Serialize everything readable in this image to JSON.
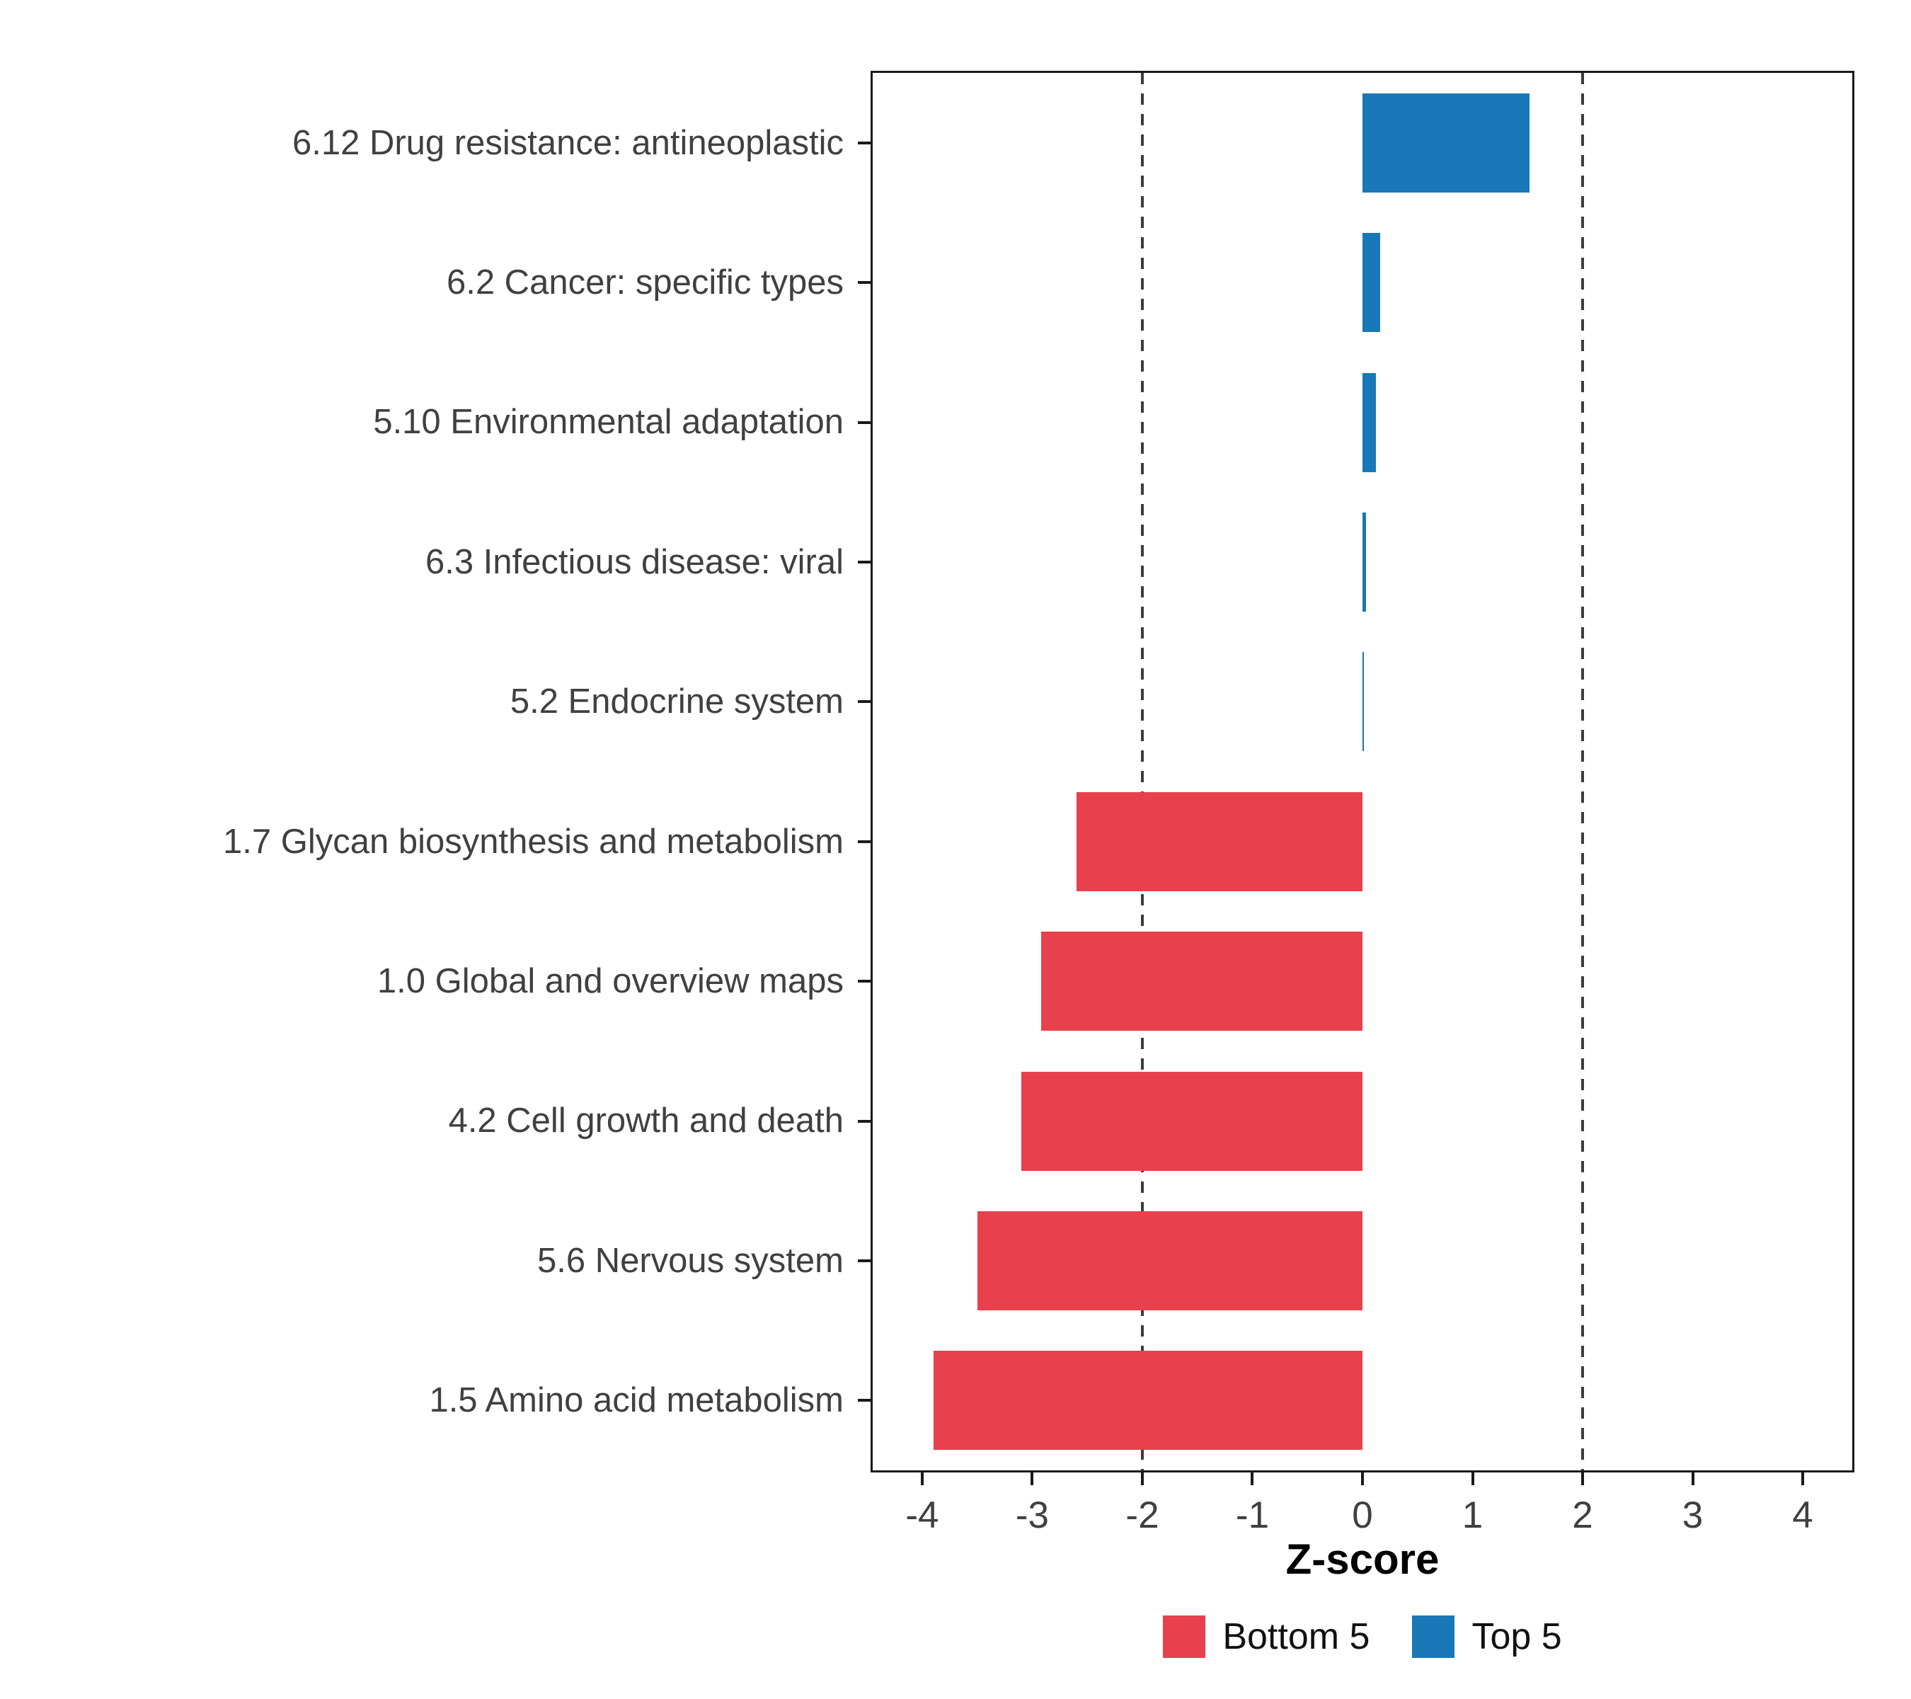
{
  "chart_data": {
    "type": "bar",
    "orientation": "horizontal",
    "title": "",
    "xlabel": "Z-score",
    "categories": [
      "6.12 Drug resistance: antineoplastic",
      "6.2 Cancer: specific types",
      "5.10 Environmental adaptation",
      "6.3 Infectious disease: viral",
      "5.2 Endocrine system",
      "1.7 Glycan biosynthesis and metabolism",
      "1.0 Global and overview maps",
      "4.2 Cell growth and death",
      "5.6 Nervous system",
      "1.5 Amino acid metabolism"
    ],
    "values": [
      1.52,
      0.16,
      0.12,
      0.03,
      0.01,
      -2.6,
      -2.92,
      -3.1,
      -3.5,
      -3.9
    ],
    "groups": [
      "Top 5",
      "Top 5",
      "Top 5",
      "Top 5",
      "Top 5",
      "Bottom 5",
      "Bottom 5",
      "Bottom 5",
      "Bottom 5",
      "Bottom 5"
    ],
    "colors": {
      "Bottom 5": "#E8404C",
      "Top 5": "#1878B8"
    },
    "x_ticks": [
      -4,
      -3,
      -2,
      -1,
      0,
      1,
      2,
      3,
      4
    ],
    "xlim": [
      -4.45,
      4.45
    ],
    "reference_lines": [
      -2,
      2
    ],
    "grid": false,
    "legend": {
      "position": "bottom",
      "items": [
        {
          "label": "Bottom 5",
          "color": "#E8404C"
        },
        {
          "label": "Top 5",
          "color": "#1878B8"
        }
      ]
    }
  }
}
